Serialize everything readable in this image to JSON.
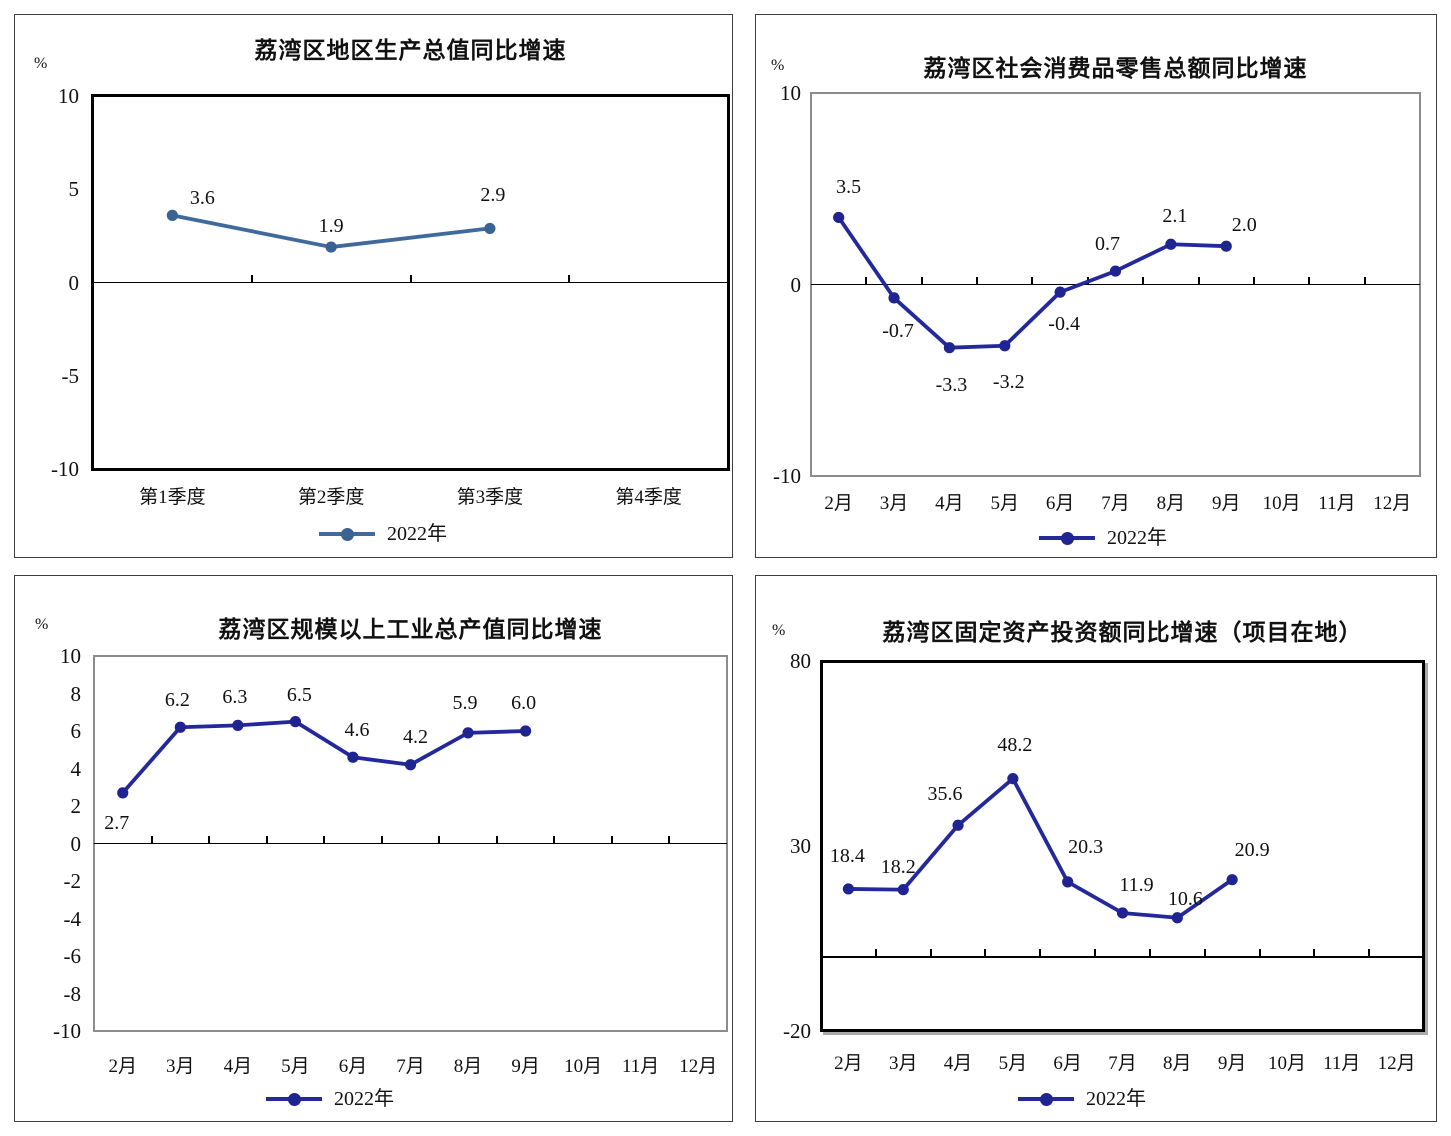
{
  "page": {
    "background": "#ffffff"
  },
  "chart_data": [
    {
      "type": "line",
      "title": "荔湾区地区生产总值同比增速",
      "unit_label": "%",
      "legend_label": "2022年",
      "legend_position": "bottom",
      "categories": [
        "第1季度",
        "第2季度",
        "第3季度",
        "第4季度"
      ],
      "values": [
        3.6,
        1.9,
        2.9,
        null
      ],
      "data_labels": [
        "3.6",
        "1.9",
        "2.9"
      ],
      "yticks": [
        10,
        5,
        0,
        -5,
        -10
      ],
      "ylim": [
        -10,
        10
      ],
      "grid": false,
      "line_color": "#406a9b",
      "marker_color": "#3a6292",
      "frame_color": "#000000"
    },
    {
      "type": "line",
      "title": "荔湾区社会消费品零售总额同比增速",
      "unit_label": "%",
      "legend_label": "2022年",
      "legend_position": "bottom",
      "categories": [
        "2月",
        "3月",
        "4月",
        "5月",
        "6月",
        "7月",
        "8月",
        "9月",
        "10月",
        "11月",
        "12月"
      ],
      "values": [
        3.5,
        -0.7,
        -3.3,
        -3.2,
        -0.4,
        0.7,
        2.1,
        2.0,
        null,
        null,
        null
      ],
      "data_labels": [
        "3.5",
        "-0.7",
        "-3.3",
        "-3.2",
        "-0.4",
        "0.7",
        "2.1",
        "2.0"
      ],
      "yticks": [
        10,
        0,
        -10
      ],
      "ylim": [
        -10,
        10
      ],
      "grid": false,
      "line_color": "#23289a",
      "marker_color": "#1f2490",
      "frame_color": "#8c8c8c"
    },
    {
      "type": "line",
      "title": "荔湾区规模以上工业总产值同比增速",
      "unit_label": "%",
      "legend_label": "2022年",
      "legend_position": "bottom",
      "categories": [
        "2月",
        "3月",
        "4月",
        "5月",
        "6月",
        "7月",
        "8月",
        "9月",
        "10月",
        "11月",
        "12月"
      ],
      "values": [
        2.7,
        6.2,
        6.3,
        6.5,
        4.6,
        4.2,
        5.9,
        6.0,
        null,
        null,
        null
      ],
      "data_labels": [
        "2.7",
        "6.2",
        "6.3",
        "6.5",
        "4.6",
        "4.2",
        "5.9",
        "6.0"
      ],
      "yticks": [
        10,
        8,
        6,
        4,
        2,
        0,
        -2,
        -4,
        -6,
        -8,
        -10
      ],
      "ylim": [
        -10,
        10
      ],
      "grid": false,
      "line_color": "#23289a",
      "marker_color": "#1f2490",
      "frame_color": "#8c8c8c"
    },
    {
      "type": "line",
      "title": "荔湾区固定资产投资额同比增速（项目在地）",
      "unit_label": "%",
      "legend_label": "2022年",
      "legend_position": "bottom",
      "categories": [
        "2月",
        "3月",
        "4月",
        "5月",
        "6月",
        "7月",
        "8月",
        "9月",
        "10月",
        "11月",
        "12月"
      ],
      "values": [
        18.4,
        18.2,
        35.6,
        48.2,
        20.3,
        11.9,
        10.6,
        20.9,
        null,
        null,
        null
      ],
      "data_labels": [
        "18.4",
        "18.2",
        "35.6",
        "48.2",
        "20.3",
        "11.9",
        "10.6",
        "20.9"
      ],
      "yticks": [
        80,
        30,
        -20
      ],
      "ylim": [
        -20,
        80
      ],
      "grid": false,
      "line_color": "#23289a",
      "marker_color": "#1f2490",
      "frame_color": "#000000"
    }
  ]
}
